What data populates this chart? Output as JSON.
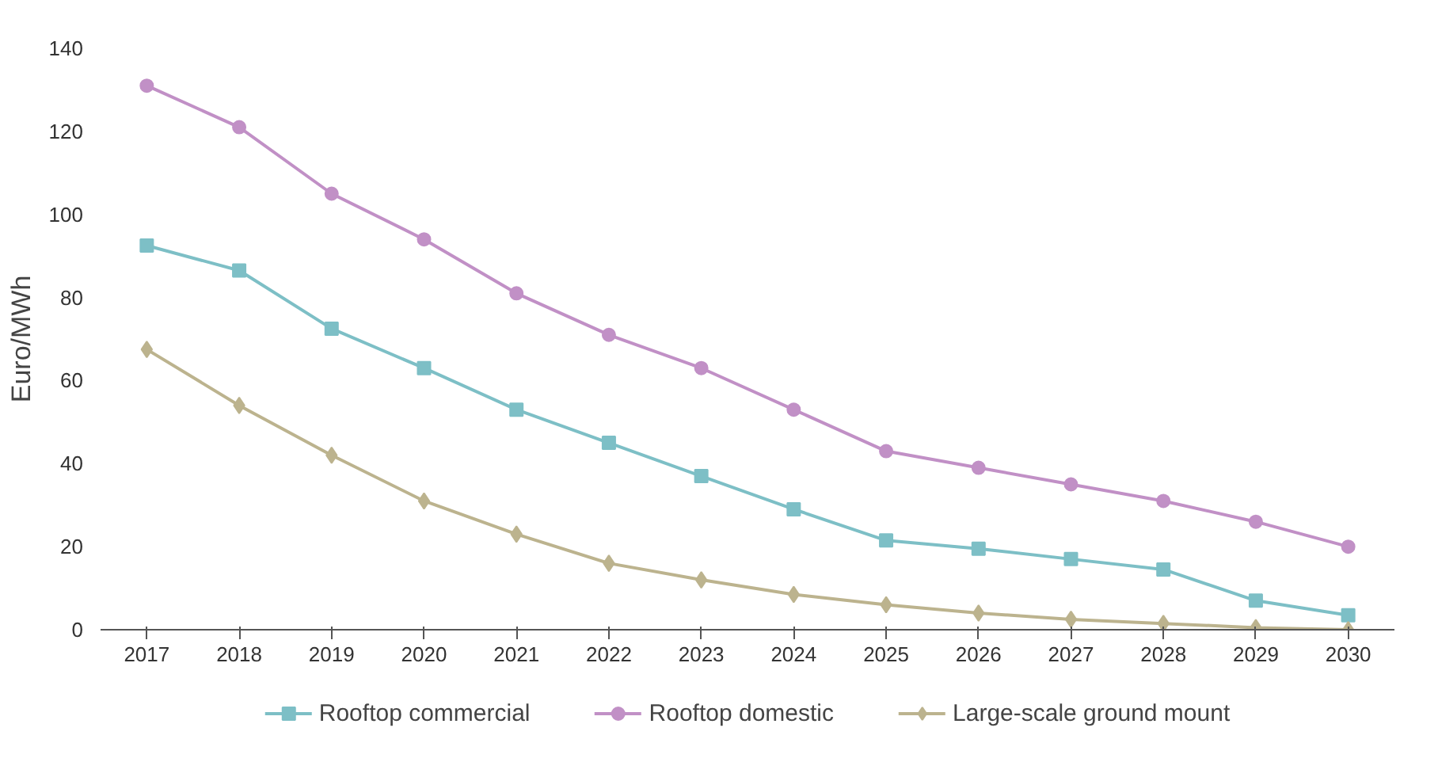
{
  "chart_data": {
    "type": "line",
    "ylabel": "Euro/MWh",
    "categories": [
      "2017",
      "2018",
      "2019",
      "2020",
      "2021",
      "2022",
      "2023",
      "2024",
      "2025",
      "2026",
      "2027",
      "2028",
      "2029",
      "2030"
    ],
    "ylim": [
      0,
      140
    ],
    "yticks": [
      0,
      20,
      40,
      60,
      80,
      100,
      120,
      140
    ],
    "grid": false,
    "legend": "bottom",
    "series": [
      {
        "name": "Rooftop commercial",
        "color": "#7dbfc6",
        "marker": "square",
        "values": [
          92.5,
          86.5,
          72.5,
          63,
          53,
          45,
          37,
          29,
          21.5,
          19.5,
          17,
          14.5,
          7,
          3.5
        ]
      },
      {
        "name": "Rooftop domestic",
        "color": "#c190c6",
        "marker": "circle",
        "values": [
          131,
          121,
          105,
          94,
          81,
          71,
          63,
          53,
          43,
          39,
          35,
          31,
          26,
          20
        ]
      },
      {
        "name": "Large-scale ground mount",
        "color": "#bcb38e",
        "marker": "diamond",
        "values": [
          67.5,
          54,
          42,
          31,
          23,
          16,
          12,
          8.5,
          6,
          4,
          2.5,
          1.5,
          0.5,
          0
        ]
      }
    ]
  }
}
